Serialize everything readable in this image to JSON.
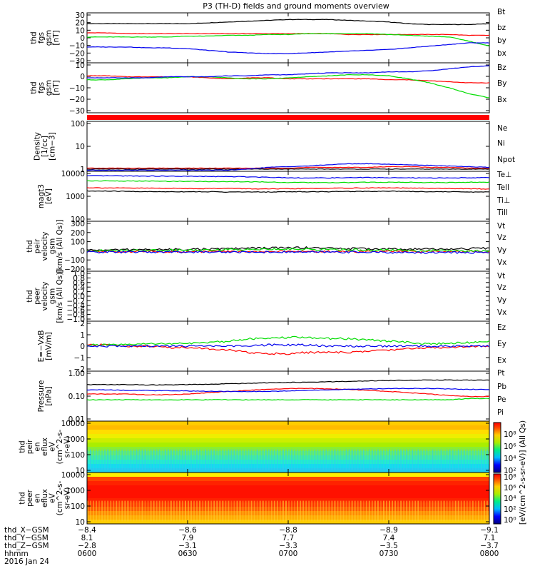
{
  "title": "P3 (TH-D) fields and ground moments overview",
  "colors": {
    "black": "#000000",
    "red": "#ff0000",
    "green": "#00dd00",
    "blue": "#0000ee"
  },
  "chart_data": [
    {
      "type": "line",
      "id": "fgs",
      "ylabel": [
        "thd",
        "fgs",
        "gsm",
        "[nT]"
      ],
      "yticks": [
        "30",
        "20",
        "10",
        "0",
        "−10",
        "−20",
        "−30"
      ],
      "ylim": [
        -30,
        30
      ],
      "series": [
        {
          "name": "Bt",
          "color": "#000000",
          "values": [
            17,
            17,
            17,
            17,
            17,
            17,
            18,
            19,
            20,
            21,
            22,
            22,
            22,
            21,
            20,
            19,
            17,
            16,
            16,
            16,
            17
          ]
        },
        {
          "name": "bz",
          "color": "#ff0000",
          "values": [
            6,
            6,
            5,
            5,
            5,
            5,
            5,
            5,
            5,
            5,
            5,
            5,
            5,
            4,
            4,
            4,
            4,
            4,
            4,
            3,
            3
          ]
        },
        {
          "name": "by",
          "color": "#00dd00",
          "values": [
            1,
            1,
            1,
            1,
            1,
            2,
            2,
            3,
            3,
            4,
            4,
            5,
            5,
            5,
            5,
            4,
            3,
            2,
            1,
            -4,
            -10
          ]
        },
        {
          "name": "bx",
          "color": "#0000ee",
          "values": [
            -11,
            -11,
            -11,
            -12,
            -12,
            -13,
            -15,
            -17,
            -18,
            -19,
            -19,
            -18,
            -17,
            -16,
            -15,
            -14,
            -12,
            -10,
            -8,
            -6,
            -6
          ]
        }
      ]
    },
    {
      "type": "line",
      "id": "fgs2",
      "ylabel": [
        "thd",
        "fgs",
        "gsm",
        "[nT]"
      ],
      "yticks": [
        "10",
        "0",
        "−10",
        "−20",
        "−30"
      ],
      "ylim": [
        -36,
        14
      ],
      "series": [
        {
          "name": "Bz",
          "color": "#ff0000",
          "values": [
            1,
            1,
            0,
            0,
            0,
            0,
            -1,
            -2,
            -1,
            -1,
            -2,
            -2,
            -2,
            -2,
            -2,
            -3,
            -3,
            -4,
            -5,
            -6,
            -6
          ]
        },
        {
          "name": "By",
          "color": "#00dd00",
          "values": [
            -3,
            -3,
            -2,
            -1,
            -1,
            0,
            0,
            -1,
            -2,
            -2,
            -1,
            0,
            1,
            2,
            2,
            1,
            -2,
            -6,
            -11,
            -17,
            -21
          ]
        },
        {
          "name": "Bx",
          "color": "#0000ee",
          "values": [
            -1,
            -1,
            -1,
            -1,
            0,
            0,
            0,
            1,
            1,
            2,
            2,
            3,
            4,
            4,
            4,
            5,
            5,
            6,
            8,
            10,
            11
          ]
        }
      ]
    },
    {
      "type": "line",
      "id": "density",
      "ylabel": [
        "Density",
        "[1/cc]",
        "[cm−3]"
      ],
      "yticks": [
        "100",
        "10",
        "1"
      ],
      "log": true,
      "ylim": [
        0.3,
        200
      ],
      "series": [
        {
          "name": "Ne",
          "color": "#ff0000",
          "values": [
            0.45,
            0.45,
            0.45,
            0.45,
            0.45,
            0.45,
            0.45,
            0.45,
            0.45,
            0.45,
            0.45,
            0.5,
            0.5,
            0.5,
            0.5,
            0.55,
            0.55,
            0.5,
            0.5,
            0.45,
            0.45
          ]
        },
        {
          "name": "Ni",
          "color": "#000000",
          "values": [
            0.4,
            0.4,
            0.4,
            0.4,
            0.4,
            0.4,
            0.4,
            0.4,
            0.4,
            0.4,
            0.4,
            0.4,
            0.4,
            0.4,
            0.4,
            0.4,
            0.4,
            0.4,
            0.4,
            0.4,
            0.4
          ]
        },
        {
          "name": "Npot",
          "color": "#0000ee",
          "values": [
            0.35,
            0.35,
            0.35,
            0.35,
            0.35,
            0.35,
            0.35,
            0.35,
            0.4,
            0.5,
            0.55,
            0.6,
            0.7,
            0.8,
            0.8,
            0.75,
            0.7,
            0.65,
            0.6,
            0.55,
            0.5
          ]
        }
      ]
    },
    {
      "type": "line",
      "id": "temp",
      "ylabel": [
        "magt3",
        "[eV]"
      ],
      "yticks": [
        "10000",
        "1000",
        "100"
      ],
      "log": true,
      "ylim": [
        100,
        12000
      ],
      "series": [
        {
          "name": "Te⊥",
          "color": "#ff0000",
          "values": [
            2500,
            2450,
            2400,
            2400,
            2350,
            2300,
            2300,
            2350,
            2250,
            2200,
            2250,
            2300,
            2350,
            2400,
            2450,
            2450,
            2400,
            2350,
            2300,
            2250,
            2200
          ]
        },
        {
          "name": "Tell",
          "color": "#000000",
          "values": [
            1800,
            1800,
            1750,
            1700,
            1700,
            1700,
            1700,
            1650,
            1650,
            1650,
            1700,
            1700,
            1700,
            1750,
            1750,
            1800,
            1750,
            1700,
            1700,
            1650,
            1650
          ]
        },
        {
          "name": "Ti⊥",
          "color": "#0000ee",
          "values": [
            7800,
            7800,
            7700,
            7600,
            7500,
            7400,
            7300,
            7200,
            7100,
            6800,
            6500,
            6300,
            6400,
            6500,
            6600,
            6500,
            6400,
            6300,
            6400,
            6500,
            6500
          ]
        },
        {
          "name": "Till",
          "color": "#00dd00",
          "values": [
            4800,
            4800,
            4700,
            4700,
            4600,
            4600,
            4500,
            4500,
            4400,
            4300,
            4100,
            4100,
            4000,
            4100,
            4200,
            4200,
            4200,
            4100,
            4100,
            4200,
            4200
          ]
        }
      ]
    },
    {
      "type": "line",
      "id": "peir",
      "ylabel": [
        "thd",
        "peir",
        "velocity",
        "gsm",
        "[km/s (All Qs)]"
      ],
      "yticks": [
        "300",
        "200",
        "100",
        "0",
        "−100",
        "−200"
      ],
      "ylim": [
        -200,
        320
      ],
      "series": [
        {
          "name": "Vt",
          "color": "#000000",
          "values": [
            20,
            20,
            25,
            25,
            25,
            30,
            30,
            35,
            40,
            40,
            45,
            45,
            40,
            35,
            35,
            30,
            30,
            30,
            30,
            35,
            40
          ]
        },
        {
          "name": "Vz",
          "color": "#ff0000",
          "values": [
            5,
            5,
            5,
            5,
            5,
            5,
            5,
            5,
            5,
            5,
            5,
            5,
            5,
            5,
            5,
            5,
            5,
            5,
            5,
            5,
            5
          ]
        },
        {
          "name": "Vy",
          "color": "#00dd00",
          "values": [
            15,
            15,
            15,
            20,
            20,
            20,
            25,
            25,
            30,
            30,
            30,
            30,
            25,
            25,
            20,
            20,
            15,
            15,
            15,
            10,
            10
          ]
        },
        {
          "name": "Vx",
          "color": "#0000ee",
          "values": [
            0,
            0,
            0,
            0,
            0,
            0,
            0,
            0,
            0,
            0,
            0,
            0,
            0,
            0,
            0,
            -5,
            -5,
            -5,
            -5,
            -5,
            -5
          ]
        }
      ]
    },
    {
      "type": "line",
      "id": "peer",
      "ylabel": [
        "thd",
        "peer",
        "velocity",
        "gsm",
        "[km/s (All Qs)]"
      ],
      "yticks": [
        "1.0",
        "0.8",
        "0.6",
        "0.4",
        "0.2",
        "0.0",
        "−0.2",
        "−0.4",
        "−0.6",
        "−0.8",
        "−1.0"
      ],
      "ylim": [
        -1,
        1
      ],
      "series": [
        {
          "name": "Vt",
          "color": "#000000",
          "values": []
        },
        {
          "name": "Vz",
          "color": "#ff0000",
          "values": []
        },
        {
          "name": "Vy",
          "color": "#00dd00",
          "values": []
        },
        {
          "name": "Vx",
          "color": "#0000ee",
          "values": []
        }
      ]
    },
    {
      "type": "line",
      "id": "efield",
      "ylabel": [
        "E=−VxB",
        "[mV/m]"
      ],
      "yticks": [
        "2",
        "1",
        "0",
        "−1",
        "−2"
      ],
      "ylim": [
        -2,
        2
      ],
      "series": [
        {
          "name": "Ez",
          "color": "#ff0000",
          "values": [
            0.1,
            0.1,
            0.0,
            0.0,
            -0.1,
            -0.1,
            -0.2,
            -0.3,
            -0.5,
            -0.6,
            -0.6,
            -0.5,
            -0.5,
            -0.5,
            -0.4,
            -0.3,
            -0.2,
            -0.1,
            -0.1,
            0.0,
            0.0
          ]
        },
        {
          "name": "Ey",
          "color": "#00dd00",
          "values": [
            0.1,
            0.1,
            0.1,
            0.2,
            0.2,
            0.2,
            0.3,
            0.4,
            0.6,
            0.6,
            0.7,
            0.7,
            0.6,
            0.6,
            0.5,
            0.4,
            0.3,
            0.2,
            0.2,
            0.3,
            0.4
          ]
        },
        {
          "name": "Ex",
          "color": "#0000ee",
          "values": [
            0.0,
            0.0,
            0.0,
            0.0,
            0.0,
            0.0,
            0.0,
            0.0,
            0.0,
            0.1,
            0.1,
            0.1,
            0.0,
            0.0,
            0.0,
            0.0,
            0.0,
            0.0,
            0.0,
            0.0,
            0.0
          ]
        }
      ]
    },
    {
      "type": "line",
      "id": "pressure",
      "ylabel": [
        "Pressure",
        "[nPa]"
      ],
      "yticks": [
        "1.00",
        "0.10",
        "0.01"
      ],
      "log": true,
      "ylim": [
        0.01,
        1.3
      ],
      "series": [
        {
          "name": "Pt",
          "color": "#000000",
          "values": [
            0.35,
            0.35,
            0.35,
            0.34,
            0.34,
            0.35,
            0.36,
            0.38,
            0.4,
            0.42,
            0.43,
            0.44,
            0.46,
            0.48,
            0.5,
            0.52,
            0.54,
            0.55,
            0.55,
            0.54,
            0.54
          ]
        },
        {
          "name": "Pb",
          "color": "#ff0000",
          "values": [
            0.14,
            0.14,
            0.14,
            0.13,
            0.13,
            0.14,
            0.16,
            0.18,
            0.2,
            0.22,
            0.24,
            0.24,
            0.23,
            0.22,
            0.2,
            0.18,
            0.16,
            0.14,
            0.12,
            0.11,
            0.11
          ]
        },
        {
          "name": "Pe",
          "color": "#00dd00",
          "values": [
            0.08,
            0.08,
            0.08,
            0.08,
            0.08,
            0.08,
            0.08,
            0.08,
            0.08,
            0.08,
            0.08,
            0.08,
            0.08,
            0.08,
            0.08,
            0.08,
            0.08,
            0.08,
            0.08,
            0.09,
            0.09
          ]
        },
        {
          "name": "Pi",
          "color": "#0000ee",
          "values": [
            0.21,
            0.21,
            0.2,
            0.2,
            0.19,
            0.19,
            0.18,
            0.18,
            0.18,
            0.18,
            0.19,
            0.2,
            0.21,
            0.22,
            0.23,
            0.24,
            0.24,
            0.24,
            0.23,
            0.22,
            0.22
          ]
        }
      ]
    },
    {
      "type": "heatmap",
      "id": "peir_spec",
      "ylabel": [
        "thd",
        "peir",
        "en",
        "eflux",
        "eV",
        "(cm^2-s-",
        "sr-eV)"
      ],
      "yticks": [
        "10000",
        "1000",
        "100",
        "10"
      ],
      "rows": [
        "#ffcc00",
        "#ffbb00",
        "#ffdd00",
        "#eeee00",
        "#ccee00",
        "#aaee00",
        "#88ee33",
        "#66ee66",
        "#44ee99",
        "#22eecc",
        "#11ddee",
        "#22ccee"
      ]
    },
    {
      "type": "heatmap",
      "id": "peer_spec",
      "ylabel": [
        "thd",
        "peer",
        "en",
        "eflux",
        "eV",
        "(cm^2-s-",
        "sr-eV)"
      ],
      "yticks": [
        "10000",
        "1000",
        "100",
        "10"
      ],
      "rows": [
        "#ffee00",
        "#ff4400",
        "#ff2200",
        "#ff1100",
        "#ff1100",
        "#ff1100",
        "#ff2200",
        "#ff3300",
        "#ff5500",
        "#ff8800",
        "#ffaa00",
        "#ffcc00"
      ]
    }
  ],
  "legends": {
    "fgs": [
      "Bt",
      "bz",
      "by",
      "bx"
    ],
    "fgs2": [
      "Bz",
      "By",
      "Bx"
    ],
    "density": [
      "Ne",
      "Ni",
      "Npot"
    ],
    "temp": [
      "Te⊥",
      "Tell",
      "Ti⊥",
      "Till"
    ],
    "peir": [
      "Vt",
      "Vz",
      "Vy",
      "Vx"
    ],
    "peer": [
      "Vt",
      "Vz",
      "Vy",
      "Vx"
    ],
    "efield": [
      "Ez",
      "Ey",
      "Ex"
    ],
    "pressure": [
      "Pt",
      "Pb",
      "Pe",
      "Pi"
    ]
  },
  "colorbar": {
    "label": "[eV/(cm^2-s-sr-eV)] (All Qs)",
    "ticks_top": [
      "10⁸",
      "10⁶",
      "10⁴",
      "10²"
    ],
    "ticks_bottom": [
      "10⁸",
      "10⁶",
      "10⁴",
      "10²",
      "10⁰"
    ]
  },
  "xaxis": {
    "rows_labels": [
      "thd_X−GSM",
      "thd_Y−GSM",
      "thd_Z−GSM",
      "hhmm"
    ],
    "date": "2016 Jan 24",
    "columns": [
      [
        "−8.4",
        "8.1",
        "−2.8",
        "0600"
      ],
      [
        "−8.6",
        "7.9",
        "−3.1",
        "0630"
      ],
      [
        "−8.8",
        "7.7",
        "−3.3",
        "0700"
      ],
      [
        "−8.9",
        "7.4",
        "−3.5",
        "0730"
      ],
      [
        "−9.1",
        "7.1",
        "−3.7",
        "0800"
      ]
    ]
  }
}
